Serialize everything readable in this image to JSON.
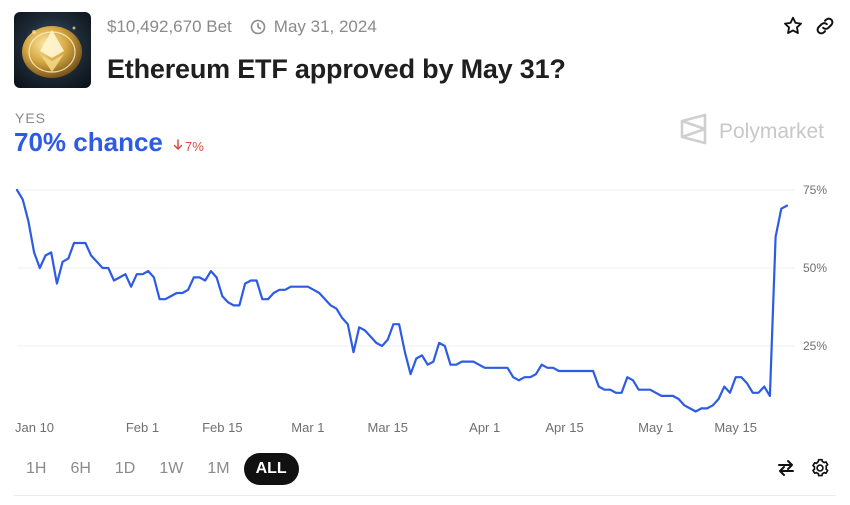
{
  "market": {
    "volume": "$10,492,670 Bet",
    "end_date": "May 31, 2024",
    "title": "Ethereum ETF approved by May 31?"
  },
  "outcome": {
    "label": "YES",
    "chance": "70% chance",
    "delta": "7%",
    "delta_direction": "down",
    "color": "#2d5be3",
    "delta_color": "#d94a3d"
  },
  "brand": {
    "name": "Polymarket"
  },
  "timeframes": [
    "1H",
    "6H",
    "1D",
    "1W",
    "1M",
    "ALL"
  ],
  "active_timeframe": "ALL",
  "icons": {
    "header": [
      "star-icon",
      "link-icon"
    ],
    "chart_tools": [
      "swap-icon",
      "gear-icon"
    ]
  },
  "chart_data": {
    "type": "line",
    "x_start": "2024-01-10",
    "xticks": [
      "Jan 10",
      "Feb 1",
      "Feb 15",
      "Mar 1",
      "Mar 15",
      "Apr 1",
      "Apr 15",
      "May 1",
      "May 15"
    ],
    "xtick_dates": [
      "2024-01-10",
      "2024-02-01",
      "2024-02-15",
      "2024-03-01",
      "2024-03-15",
      "2024-04-01",
      "2024-04-15",
      "2024-05-01",
      "2024-05-15"
    ],
    "yticks": [
      "75%",
      "50%",
      "25%"
    ],
    "ylim": [
      0,
      80
    ],
    "grid": true,
    "series": [
      {
        "line_color": "#2d5be3",
        "points": [
          [
            "2024-01-10",
            75
          ],
          [
            "2024-01-11",
            72
          ],
          [
            "2024-01-12",
            65
          ],
          [
            "2024-01-13",
            55
          ],
          [
            "2024-01-14",
            50
          ],
          [
            "2024-01-15",
            54
          ],
          [
            "2024-01-16",
            55
          ],
          [
            "2024-01-17",
            45
          ],
          [
            "2024-01-18",
            52
          ],
          [
            "2024-01-19",
            53
          ],
          [
            "2024-01-20",
            58
          ],
          [
            "2024-01-21",
            58
          ],
          [
            "2024-01-22",
            58
          ],
          [
            "2024-01-23",
            54
          ],
          [
            "2024-01-24",
            52
          ],
          [
            "2024-01-25",
            50
          ],
          [
            "2024-01-26",
            50
          ],
          [
            "2024-01-27",
            46
          ],
          [
            "2024-01-28",
            47
          ],
          [
            "2024-01-29",
            48
          ],
          [
            "2024-01-30",
            44
          ],
          [
            "2024-01-31",
            48
          ],
          [
            "2024-02-01",
            48
          ],
          [
            "2024-02-02",
            49
          ],
          [
            "2024-02-03",
            47
          ],
          [
            "2024-02-04",
            40
          ],
          [
            "2024-02-05",
            40
          ],
          [
            "2024-02-06",
            41
          ],
          [
            "2024-02-07",
            42
          ],
          [
            "2024-02-08",
            42
          ],
          [
            "2024-02-09",
            43
          ],
          [
            "2024-02-10",
            47
          ],
          [
            "2024-02-11",
            47
          ],
          [
            "2024-02-12",
            46
          ],
          [
            "2024-02-13",
            49
          ],
          [
            "2024-02-14",
            47
          ],
          [
            "2024-02-15",
            41
          ],
          [
            "2024-02-16",
            39
          ],
          [
            "2024-02-17",
            38
          ],
          [
            "2024-02-18",
            38
          ],
          [
            "2024-02-19",
            45
          ],
          [
            "2024-02-20",
            46
          ],
          [
            "2024-02-21",
            46
          ],
          [
            "2024-02-22",
            40
          ],
          [
            "2024-02-23",
            40
          ],
          [
            "2024-02-24",
            42
          ],
          [
            "2024-02-25",
            43
          ],
          [
            "2024-02-26",
            43
          ],
          [
            "2024-02-27",
            44
          ],
          [
            "2024-02-28",
            44
          ],
          [
            "2024-02-29",
            44
          ],
          [
            "2024-03-01",
            44
          ],
          [
            "2024-03-02",
            43
          ],
          [
            "2024-03-03",
            42
          ],
          [
            "2024-03-04",
            40
          ],
          [
            "2024-03-05",
            38
          ],
          [
            "2024-03-06",
            37
          ],
          [
            "2024-03-07",
            34
          ],
          [
            "2024-03-08",
            32
          ],
          [
            "2024-03-09",
            23
          ],
          [
            "2024-03-10",
            31
          ],
          [
            "2024-03-11",
            30
          ],
          [
            "2024-03-12",
            28
          ],
          [
            "2024-03-13",
            26
          ],
          [
            "2024-03-14",
            25
          ],
          [
            "2024-03-15",
            27
          ],
          [
            "2024-03-16",
            32
          ],
          [
            "2024-03-17",
            32
          ],
          [
            "2024-03-18",
            23
          ],
          [
            "2024-03-19",
            16
          ],
          [
            "2024-03-20",
            21
          ],
          [
            "2024-03-21",
            22
          ],
          [
            "2024-03-22",
            19
          ],
          [
            "2024-03-23",
            20
          ],
          [
            "2024-03-24",
            26
          ],
          [
            "2024-03-25",
            25
          ],
          [
            "2024-03-26",
            19
          ],
          [
            "2024-03-27",
            19
          ],
          [
            "2024-03-28",
            20
          ],
          [
            "2024-03-29",
            20
          ],
          [
            "2024-03-30",
            20
          ],
          [
            "2024-03-31",
            19
          ],
          [
            "2024-04-01",
            18
          ],
          [
            "2024-04-02",
            18
          ],
          [
            "2024-04-03",
            18
          ],
          [
            "2024-04-04",
            18
          ],
          [
            "2024-04-05",
            18
          ],
          [
            "2024-04-06",
            15
          ],
          [
            "2024-04-07",
            14
          ],
          [
            "2024-04-08",
            15
          ],
          [
            "2024-04-09",
            15
          ],
          [
            "2024-04-10",
            16
          ],
          [
            "2024-04-11",
            19
          ],
          [
            "2024-04-12",
            18
          ],
          [
            "2024-04-13",
            18
          ],
          [
            "2024-04-14",
            17
          ],
          [
            "2024-04-15",
            17
          ],
          [
            "2024-04-16",
            17
          ],
          [
            "2024-04-17",
            17
          ],
          [
            "2024-04-18",
            17
          ],
          [
            "2024-04-19",
            17
          ],
          [
            "2024-04-20",
            17
          ],
          [
            "2024-04-21",
            12
          ],
          [
            "2024-04-22",
            11
          ],
          [
            "2024-04-23",
            11
          ],
          [
            "2024-04-24",
            10
          ],
          [
            "2024-04-25",
            10
          ],
          [
            "2024-04-26",
            15
          ],
          [
            "2024-04-27",
            14
          ],
          [
            "2024-04-28",
            11
          ],
          [
            "2024-04-29",
            11
          ],
          [
            "2024-04-30",
            11
          ],
          [
            "2024-05-01",
            10
          ],
          [
            "2024-05-02",
            9
          ],
          [
            "2024-05-03",
            9
          ],
          [
            "2024-05-04",
            9
          ],
          [
            "2024-05-05",
            8
          ],
          [
            "2024-05-06",
            6
          ],
          [
            "2024-05-07",
            5
          ],
          [
            "2024-05-08",
            4
          ],
          [
            "2024-05-09",
            5
          ],
          [
            "2024-05-10",
            5
          ],
          [
            "2024-05-11",
            6
          ],
          [
            "2024-05-12",
            8
          ],
          [
            "2024-05-13",
            12
          ],
          [
            "2024-05-14",
            10
          ],
          [
            "2024-05-15",
            15
          ],
          [
            "2024-05-16",
            15
          ],
          [
            "2024-05-17",
            13
          ],
          [
            "2024-05-18",
            10
          ],
          [
            "2024-05-19",
            10
          ],
          [
            "2024-05-20",
            12
          ],
          [
            "2024-05-21",
            9
          ],
          [
            "2024-05-22",
            60
          ],
          [
            "2024-05-23",
            69
          ],
          [
            "2024-05-24",
            70
          ]
        ]
      }
    ]
  }
}
